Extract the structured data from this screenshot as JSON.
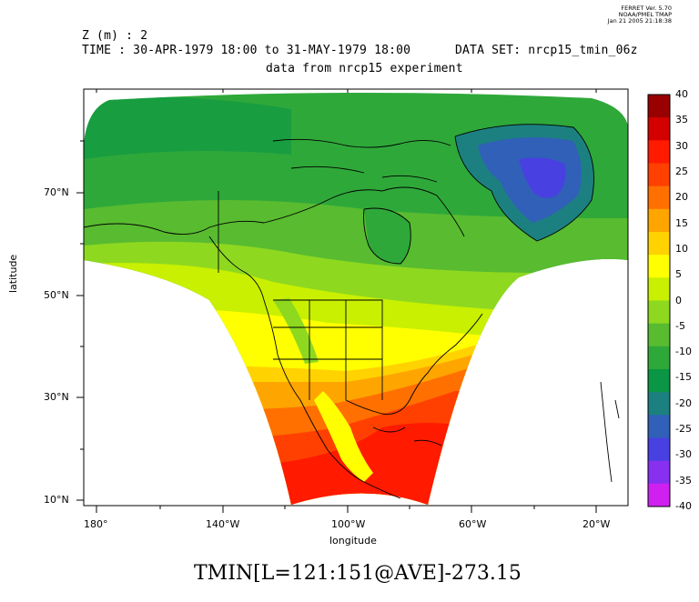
{
  "stamp": {
    "line1": "FERRET Ver. 5.70",
    "line2": "NOAA/PMEL TMAP",
    "line3": "Jan 21 2005 21:18:38"
  },
  "header": {
    "z_label": "Z (m) : 2",
    "time_label": "TIME : 30-APR-1979 18:00 to 31-MAY-1979 18:00",
    "dataset_label": "DATA SET: nrcp15_tmin_06z",
    "subtitle": "data from nrcp15 experiment"
  },
  "axes": {
    "x_label": "longitude",
    "y_label": "latitude",
    "x_ticks": [
      "180°",
      "140°W",
      "100°W",
      "60°W",
      "20°W"
    ],
    "y_ticks": [
      "70°N",
      "50°N",
      "30°N",
      "10°N"
    ]
  },
  "colorbar": {
    "labels": [
      "40",
      "35",
      "30",
      "25",
      "20",
      "15",
      "10",
      "5",
      "0",
      "-5",
      "-10",
      "-15",
      "-20",
      "-25",
      "-30",
      "-35",
      "-40"
    ],
    "colors": [
      "#990000",
      "#d40000",
      "#ff1a00",
      "#ff4000",
      "#ff7000",
      "#ffa500",
      "#ffd200",
      "#ffff00",
      "#c8f000",
      "#8ed820",
      "#58bb30",
      "#2fa83a",
      "#0a9644",
      "#1c8080",
      "#3060b8",
      "#4840e0",
      "#8830f0",
      "#d020f0"
    ]
  },
  "field_colors": {
    "arctic": "#2fa83a",
    "greenland": "#3060b8",
    "canada": "#58bb30",
    "midlat": "#c8f000",
    "usa": "#ffff00",
    "south": "#ffa500",
    "gulf": "#ff4000",
    "tropics": "#ff1a00"
  },
  "footer": {
    "variable": "TMIN[L=121:151@AVE]-273.15"
  }
}
